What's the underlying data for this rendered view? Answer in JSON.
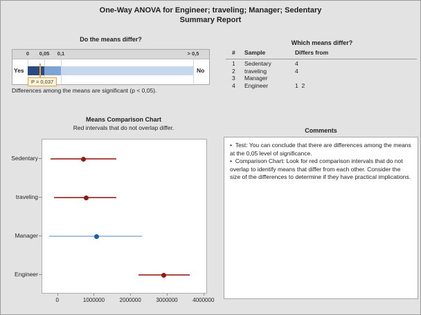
{
  "title": {
    "line1": "One-Way ANOVA for Engineer; traveling; Manager; Sedentary",
    "line2": "Summary Report"
  },
  "gauge": {
    "heading": "Do the means differ?",
    "scale_labels": [
      "0",
      "0,05",
      "0,1",
      "> 0,5"
    ],
    "yes_label": "Yes",
    "no_label": "No",
    "p_value": 0.037,
    "p_label": "P = 0,037",
    "caption": "Differences among the means are significant (p < 0,05).",
    "colors": {
      "dark": "#2a4a80",
      "medium": "#7fa3d3",
      "light": "#c6d8ee",
      "marker": "#e8a33c",
      "p_box_bg": "#fdf3d9",
      "p_box_border": "#dfa53f"
    }
  },
  "differs_table": {
    "heading": "Which means differ?",
    "columns": {
      "num": "#",
      "sample": "Sample",
      "differs": "Differs from"
    },
    "rows": [
      {
        "num": "1",
        "sample": "Sedentary",
        "differs": "4"
      },
      {
        "num": "2",
        "sample": "traveling",
        "differs": "4"
      },
      {
        "num": "3",
        "sample": "Manager",
        "differs": ""
      },
      {
        "num": "4",
        "sample": "Engineer",
        "differs": "1  2"
      }
    ]
  },
  "chart_data": {
    "type": "scatter",
    "title": "Means Comparison Chart",
    "subtitle": "Red intervals that do not overlap differ.",
    "categories": [
      "Sedentary",
      "traveling",
      "Manager",
      "Engineer"
    ],
    "means": [
      700000,
      780000,
      1050000,
      2900000
    ],
    "intervals": [
      [
        -200000,
        1600000
      ],
      [
        -100000,
        1600000
      ],
      [
        -250000,
        2300000
      ],
      [
        2200000,
        3600000
      ]
    ],
    "interval_colors": [
      {
        "line": "#ac4a42",
        "dot": "#8e1b14"
      },
      {
        "line": "#ac4a42",
        "dot": "#8e1b14"
      },
      {
        "line": "#a4c2e2",
        "dot": "#1c5fa8"
      },
      {
        "line": "#ac4a42",
        "dot": "#8e1b14"
      }
    ],
    "xticks": [
      0,
      1000000,
      2000000,
      3000000,
      4000000
    ],
    "xtick_labels": [
      "0",
      "1000000",
      "2000000",
      "3000000",
      "4000000"
    ],
    "xlim": [
      -430000,
      4060000
    ],
    "grid": false,
    "legend": false
  },
  "comments": {
    "heading": "Comments",
    "bullets": [
      "Test: You can conclude that there are differences among the means at the 0,05 level of significance.",
      "Comparison Chart: Look for red comparison intervals that do not overlap to identify means that differ from each other. Consider the size of the differences to determine if they have practical implications."
    ]
  }
}
